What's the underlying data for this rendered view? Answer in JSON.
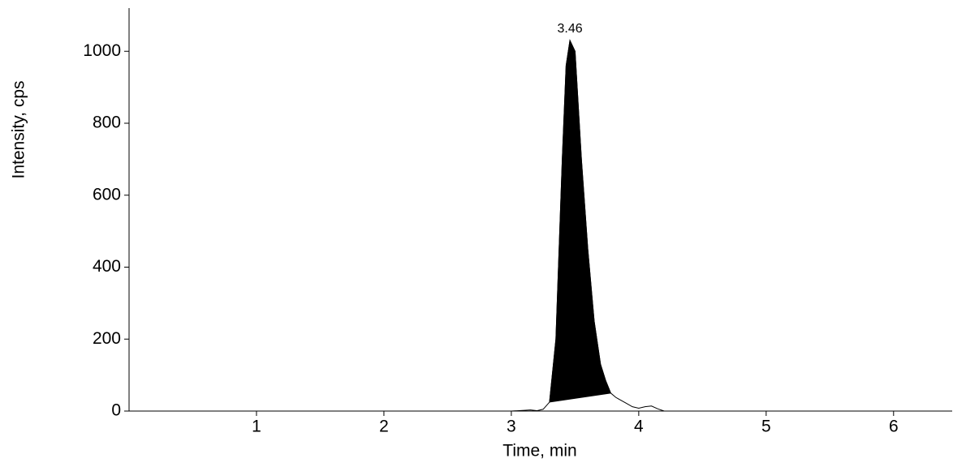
{
  "chart_data": {
    "type": "line",
    "xlabel": "Time, min",
    "ylabel": "Intensity, cps",
    "x": [
      0,
      3.0,
      3.1,
      3.15,
      3.2,
      3.25,
      3.3,
      3.35,
      3.4,
      3.43,
      3.46,
      3.5,
      3.55,
      3.6,
      3.65,
      3.7,
      3.74,
      3.78,
      3.82,
      3.85,
      3.9,
      3.95,
      4.0,
      4.05,
      4.1,
      4.15,
      4.2,
      6.46
    ],
    "series": [
      {
        "color": "#000000",
        "values": [
          0,
          0,
          2,
          3,
          1,
          5,
          25,
          200,
          700,
          960,
          1030,
          1000,
          700,
          450,
          250,
          130,
          85,
          50,
          38,
          32,
          22,
          12,
          8,
          12,
          14,
          6,
          0,
          0
        ]
      }
    ],
    "peak_area": {
      "start": 3.3,
      "end": 3.78,
      "color": "#000000"
    },
    "annotations": [
      {
        "text": "3.46",
        "x": 3.46,
        "y": 1030
      }
    ],
    "xlim": [
      0,
      6.46
    ],
    "ylim": [
      0,
      1120
    ],
    "xticks": [
      1,
      2,
      3,
      4,
      5,
      6
    ],
    "yticks": [
      0,
      200,
      400,
      600,
      800,
      1000
    ]
  }
}
